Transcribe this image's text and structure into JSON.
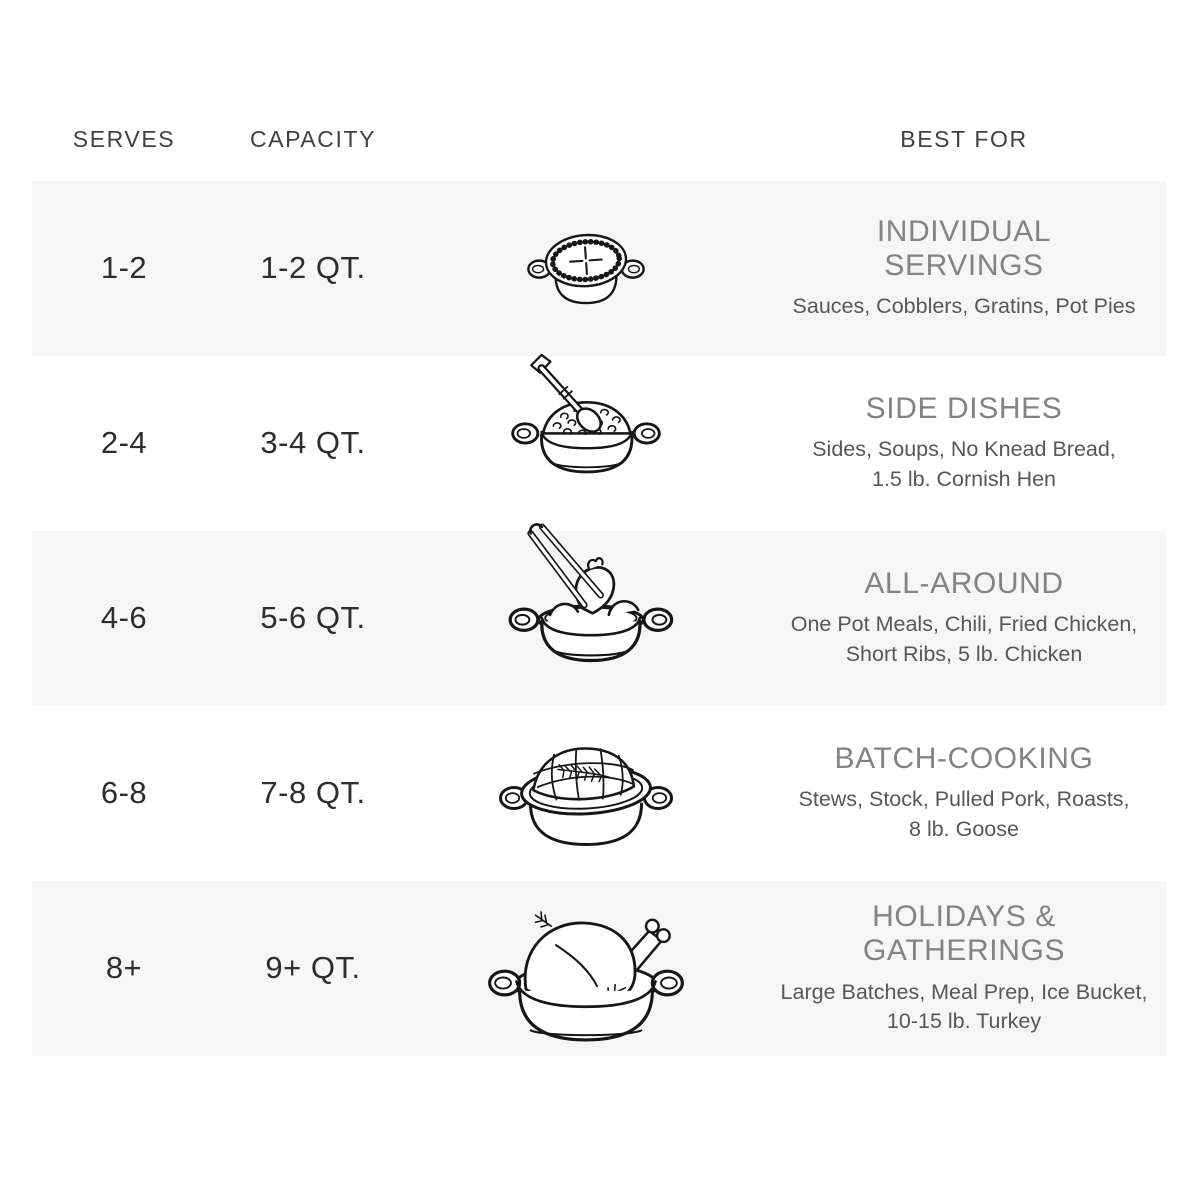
{
  "header": {
    "serves": "SERVES",
    "capacity": "CAPACITY",
    "best_for": "BEST FOR"
  },
  "rows": [
    {
      "serves": "1-2",
      "capacity": "1-2 QT.",
      "illustration": "mini-cocotte-pot-pie",
      "title_lines": [
        "INDIVIDUAL",
        "SERVINGS"
      ],
      "description_lines": [
        "Sauces, Cobblers, Gratins, Pot Pies"
      ]
    },
    {
      "serves": "2-4",
      "capacity": "3-4 QT.",
      "illustration": "pot-with-spoon",
      "title_lines": [
        "SIDE DISHES"
      ],
      "description_lines": [
        "Sides, Soups, No Knead Bread,",
        "1.5 lb. Cornish Hen"
      ]
    },
    {
      "serves": "4-6",
      "capacity": "5-6 QT.",
      "illustration": "pot-with-tongs-chicken",
      "title_lines": [
        "ALL-AROUND"
      ],
      "description_lines": [
        "One Pot Meals, Chili, Fried Chicken,",
        "Short Ribs, 5 lb. Chicken"
      ]
    },
    {
      "serves": "6-8",
      "capacity": "7-8 QT.",
      "illustration": "pot-with-netted-roast",
      "title_lines": [
        "BATCH-COOKING"
      ],
      "description_lines": [
        "Stews, Stock, Pulled Pork, Roasts,",
        "8 lb. Goose"
      ]
    },
    {
      "serves": "8+",
      "capacity": "9+ QT.",
      "illustration": "pot-with-turkey",
      "title_lines": [
        "HOLIDAYS &",
        "GATHERINGS"
      ],
      "description_lines": [
        "Large Batches, Meal Prep, Ice Bucket,",
        "10-15 lb. Turkey"
      ]
    }
  ],
  "colors": {
    "band": "#f6f6f6",
    "header": "#414141",
    "value": "#2d2d2d",
    "title": "#838383",
    "desc": "#575757",
    "line_art": "#161616"
  }
}
